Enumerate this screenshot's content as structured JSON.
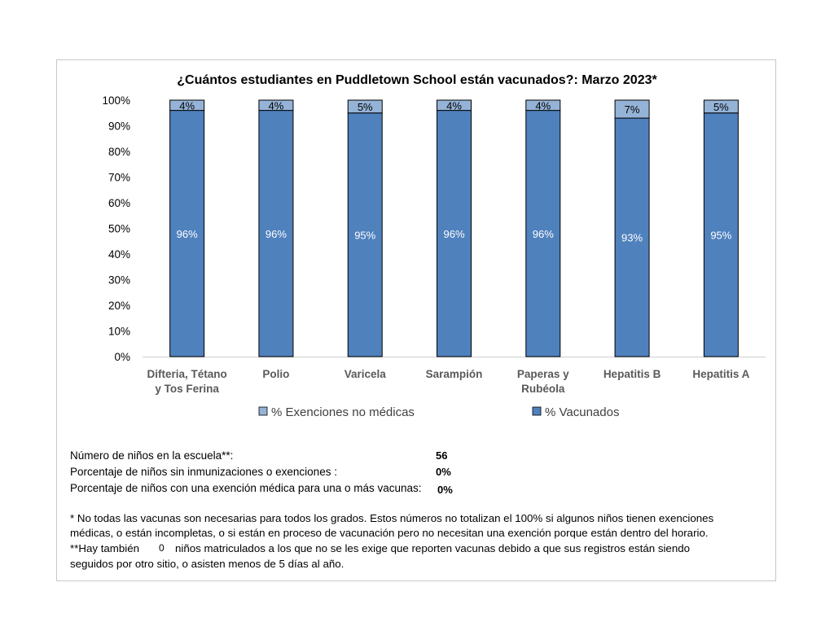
{
  "chart_data": {
    "type": "bar",
    "stacked": true,
    "title": "¿Cuántos estudiantes en Puddletown School están vacunados?: Marzo 2023*",
    "categories": [
      "Difteria, Tétano y Tos Ferina",
      "Polio",
      "Varicela",
      "Sarampión",
      "Paperas y Rubéola",
      "Hepatitis B",
      "Hepatitis A"
    ],
    "category_lines": [
      [
        "Difteria, Tétano",
        "y Tos Ferina"
      ],
      [
        "Polio"
      ],
      [
        "Varicela"
      ],
      [
        "Sarampión"
      ],
      [
        "Paperas y",
        "Rubéola"
      ],
      [
        "Hepatitis B"
      ],
      [
        "Hepatitis A"
      ]
    ],
    "series": [
      {
        "name": "% Vacunados",
        "values": [
          96,
          96,
          95,
          96,
          96,
          93,
          95
        ],
        "labels": [
          "96%",
          "96%",
          "95%",
          "96%",
          "96%",
          "93%",
          "95%"
        ],
        "color": "#4f81bd"
      },
      {
        "name": "% Exenciones no médicas",
        "values": [
          4,
          4,
          5,
          4,
          4,
          7,
          5
        ],
        "labels": [
          "4%",
          "4%",
          "5%",
          "4%",
          "4%",
          "7%",
          "5%"
        ],
        "color": "#95b3d7"
      }
    ],
    "legend": [
      "% Exenciones no médicas",
      "% Vacunados"
    ],
    "yticks": [
      "0%",
      "10%",
      "20%",
      "30%",
      "40%",
      "50%",
      "60%",
      "70%",
      "80%",
      "90%",
      "100%"
    ],
    "ylim": [
      0,
      100
    ],
    "xlabel": "",
    "ylabel": ""
  },
  "stats": {
    "children_label": "Número de niños en la escuela**:",
    "children_value": "56",
    "no_immunization_label": "Porcentaje de niños sin inmunizaciones o exenciones :",
    "no_immunization_value": "0%",
    "medical_exemption_label": "Porcentaje de niños con una exención médica para una o más vacunas:",
    "medical_exemption_value": "0%"
  },
  "notes": {
    "line1": "* No todas las vacunas son necesarias para todos los grados. Estos números no totalizan el 100% si algunos niños tienen exenciones",
    "line2": "médicas, o están incompletas, o si están en proceso de vacunación pero no necesitan una exención porque están dentro del horario.",
    "line3_prefix": "**Hay también",
    "line3_value": "0",
    "line3_suffix": "niños matriculados a los que no se les exige que reporten vacunas debido a que sus registros están siendo",
    "line4": "seguidos por otro sitio, o asisten menos de 5 días al año."
  }
}
